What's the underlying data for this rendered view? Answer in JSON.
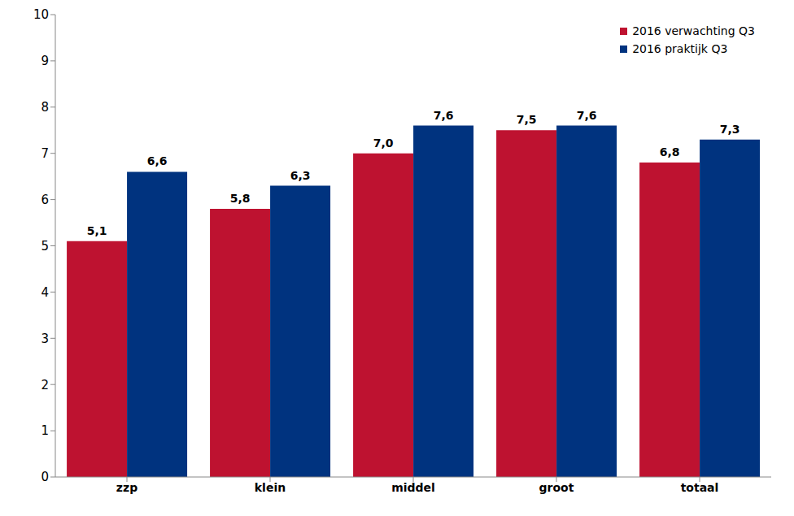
{
  "chart_data": {
    "type": "bar",
    "categories": [
      "zzp",
      "klein",
      "middel",
      "groot",
      "totaal"
    ],
    "series": [
      {
        "name": "2016 verwachting Q3",
        "color": "#BE1230",
        "values": [
          5.1,
          5.8,
          7.0,
          7.5,
          6.8
        ],
        "value_labels": [
          "5,1",
          "5,8",
          "7,0",
          "7,5",
          "6,8"
        ]
      },
      {
        "name": "2016 praktijk Q3",
        "color": "#00337F",
        "values": [
          6.6,
          6.3,
          7.6,
          7.6,
          7.3
        ],
        "value_labels": [
          "6,6",
          "6,3",
          "7,6",
          "7,6",
          "7,3"
        ]
      }
    ],
    "ylim": [
      0,
      10
    ],
    "yticks": [
      0,
      1,
      2,
      3,
      4,
      5,
      6,
      7,
      8,
      9,
      10
    ],
    "grid": false,
    "legend": "top-right",
    "data_labels": true
  }
}
